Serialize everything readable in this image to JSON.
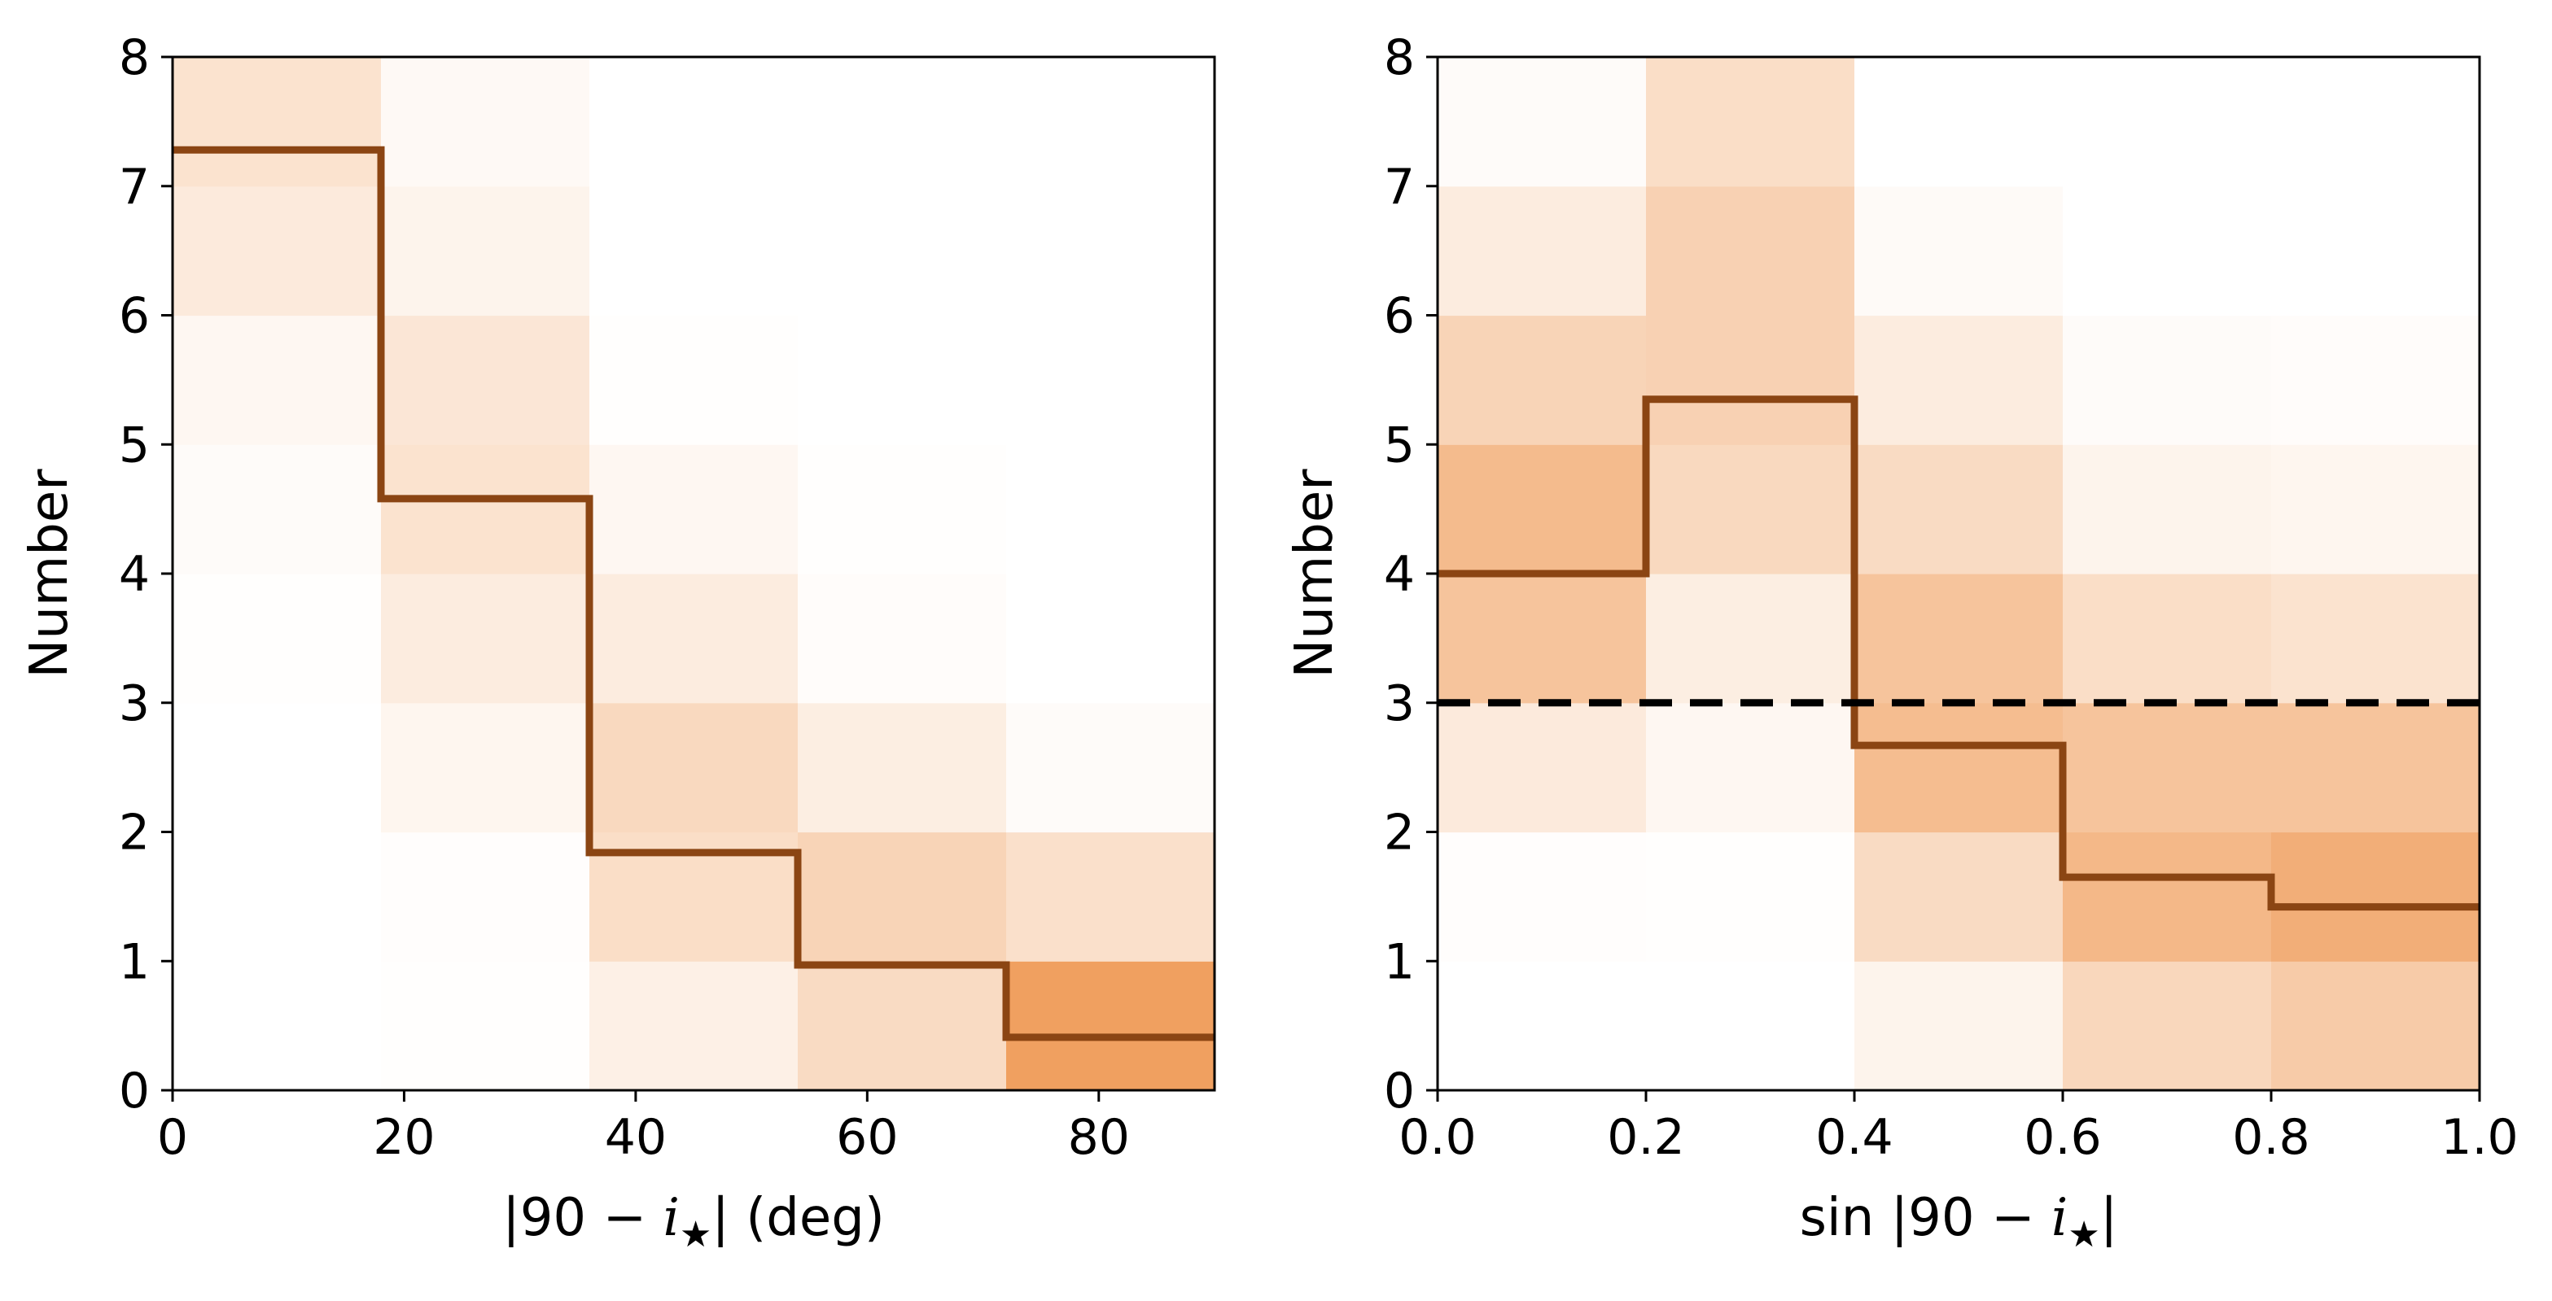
{
  "colors": {
    "step_line": "#8B4513",
    "reference_line": "#000000",
    "heat_max": "#F0A060",
    "heat_min": "#FFFFFF"
  },
  "chart_data": [
    {
      "type": "heatmap",
      "title": "",
      "xlabel": "|90 − i★| (deg)",
      "xlabel_parts": {
        "pre": "|90 − ",
        "var": "i",
        "star": "★",
        "post": "| (deg)"
      },
      "ylabel": "Number",
      "xlim": [
        0,
        90
      ],
      "ylim": [
        0,
        8
      ],
      "xticks": [
        0,
        20,
        40,
        60,
        80
      ],
      "xtick_labels": [
        "0",
        "20",
        "40",
        "60",
        "80"
      ],
      "yticks": [
        0,
        1,
        2,
        3,
        4,
        5,
        6,
        7,
        8
      ],
      "ytick_labels": [
        "0",
        "1",
        "2",
        "3",
        "4",
        "5",
        "6",
        "7",
        "8"
      ],
      "x_bin_edges": [
        0,
        18,
        36,
        54,
        72,
        90
      ],
      "y_bin_edges": [
        0,
        1,
        2,
        3,
        4,
        5,
        6,
        7,
        8
      ],
      "density": [
        [
          0.0,
          0.01,
          0.16,
          0.38,
          1.0
        ],
        [
          0.0,
          0.02,
          0.35,
          0.45,
          0.33
        ],
        [
          0.0,
          0.1,
          0.4,
          0.18,
          0.04
        ],
        [
          0.01,
          0.2,
          0.2,
          0.03,
          0.0
        ],
        [
          0.04,
          0.3,
          0.08,
          0.01,
          0.0
        ],
        [
          0.08,
          0.26,
          0.01,
          0.0,
          0.0
        ],
        [
          0.22,
          0.12,
          0.0,
          0.0,
          0.0
        ],
        [
          0.3,
          0.06,
          0.0,
          0.0,
          0.0
        ]
      ],
      "step_values": [
        7.28,
        4.58,
        1.84,
        0.97,
        0.41
      ],
      "reference_line": null
    },
    {
      "type": "heatmap",
      "title": "",
      "xlabel": "sin |90 − i★|",
      "xlabel_parts": {
        "pre": "sin |90 − ",
        "var": "i",
        "star": "★",
        "post": "|"
      },
      "ylabel": "Number",
      "xlim": [
        0.0,
        1.0
      ],
      "ylim": [
        0,
        8
      ],
      "xticks": [
        0.0,
        0.2,
        0.4,
        0.6,
        0.8,
        1.0
      ],
      "xtick_labels": [
        "0.0",
        "0.2",
        "0.4",
        "0.6",
        "0.8",
        "1.0"
      ],
      "yticks": [
        0,
        1,
        2,
        3,
        4,
        5,
        6,
        7,
        8
      ],
      "ytick_labels": [
        "0",
        "1",
        "2",
        "3",
        "4",
        "5",
        "6",
        "7",
        "8"
      ],
      "x_bin_edges": [
        0.0,
        0.2,
        0.4,
        0.6,
        0.8,
        1.0
      ],
      "y_bin_edges": [
        0,
        1,
        2,
        3,
        4,
        5,
        6,
        7,
        8
      ],
      "density": [
        [
          0.0,
          0.0,
          0.12,
          0.42,
          0.55
        ],
        [
          0.02,
          0.01,
          0.38,
          0.75,
          0.85
        ],
        [
          0.22,
          0.08,
          0.7,
          0.62,
          0.62
        ],
        [
          0.62,
          0.18,
          0.62,
          0.35,
          0.3
        ],
        [
          0.72,
          0.4,
          0.38,
          0.12,
          0.1
        ],
        [
          0.45,
          0.48,
          0.2,
          0.04,
          0.03
        ],
        [
          0.2,
          0.48,
          0.05,
          0.0,
          0.0
        ],
        [
          0.04,
          0.35,
          0.0,
          0.0,
          0.0
        ]
      ],
      "step_values": [
        4.0,
        5.35,
        2.67,
        1.65,
        1.42
      ],
      "reference_line": {
        "y": 3.0,
        "style": "dashed"
      }
    }
  ]
}
